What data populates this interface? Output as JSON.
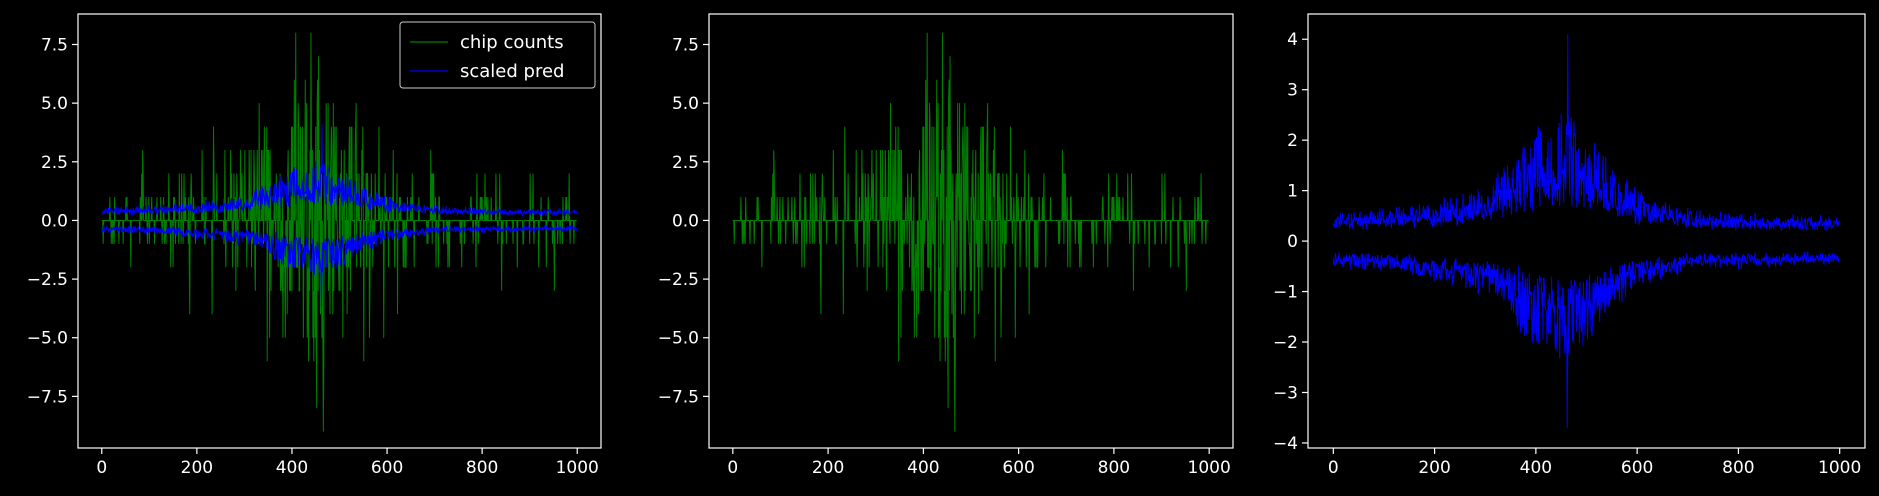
{
  "colors": {
    "background": "#000000",
    "axes": "#ffffff",
    "chip_counts": "#008000",
    "scaled_pred": "#0000ff"
  },
  "chart_data": [
    {
      "type": "line",
      "xlim": [
        -50,
        1050
      ],
      "ylim": [
        -9.7,
        8.8
      ],
      "xticks": [
        0,
        200,
        400,
        600,
        800,
        1000
      ],
      "yticks": [
        -7.5,
        -5.0,
        -2.5,
        0.0,
        2.5,
        5.0,
        7.5
      ],
      "xtick_labels": [
        "0",
        "200",
        "400",
        "600",
        "800",
        "1000"
      ],
      "ytick_labels": [
        "−7.5",
        "−5.0",
        "−2.5",
        "0.0",
        "2.5",
        "5.0",
        "7.5"
      ],
      "legend": {
        "placement": "top-right",
        "entries": [
          "chip counts",
          "scaled pred"
        ]
      },
      "series": [
        {
          "name": "chip counts",
          "color": "#008000",
          "style": "integer spikes about 0",
          "x_range": [
            0,
            999
          ],
          "peak": 8,
          "trough": -9
        },
        {
          "name": "scaled pred",
          "color": "#0000ff",
          "style": "two-sided envelope about 0",
          "x_range": [
            0,
            999
          ],
          "peak": 4.1,
          "trough": -3.7
        }
      ]
    },
    {
      "type": "line",
      "xlim": [
        -50,
        1050
      ],
      "ylim": [
        -9.7,
        8.8
      ],
      "xticks": [
        0,
        200,
        400,
        600,
        800,
        1000
      ],
      "yticks": [
        -7.5,
        -5.0,
        -2.5,
        0.0,
        2.5,
        5.0,
        7.5
      ],
      "xtick_labels": [
        "0",
        "200",
        "400",
        "600",
        "800",
        "1000"
      ],
      "ytick_labels": [
        "−7.5",
        "−5.0",
        "−2.5",
        "0.0",
        "2.5",
        "5.0",
        "7.5"
      ],
      "series": [
        {
          "color": "#008000",
          "style": "integer spikes about 0",
          "x_range": [
            0,
            999
          ],
          "peak": 8,
          "trough": -9
        }
      ]
    },
    {
      "type": "line",
      "xlim": [
        -50,
        1050
      ],
      "ylim": [
        -4.1,
        4.5
      ],
      "xticks": [
        0,
        200,
        400,
        600,
        800,
        1000
      ],
      "yticks": [
        -4,
        -3,
        -2,
        -1,
        0,
        1,
        2,
        3,
        4
      ],
      "xtick_labels": [
        "0",
        "200",
        "400",
        "600",
        "800",
        "1000"
      ],
      "ytick_labels": [
        "−4",
        "−3",
        "−2",
        "−1",
        "0",
        "1",
        "2",
        "3",
        "4"
      ],
      "series": [
        {
          "color": "#0000ff",
          "style": "two-sided envelope about 0",
          "x_range": [
            0,
            999
          ],
          "peak": 4.1,
          "trough": -3.7
        }
      ]
    }
  ]
}
